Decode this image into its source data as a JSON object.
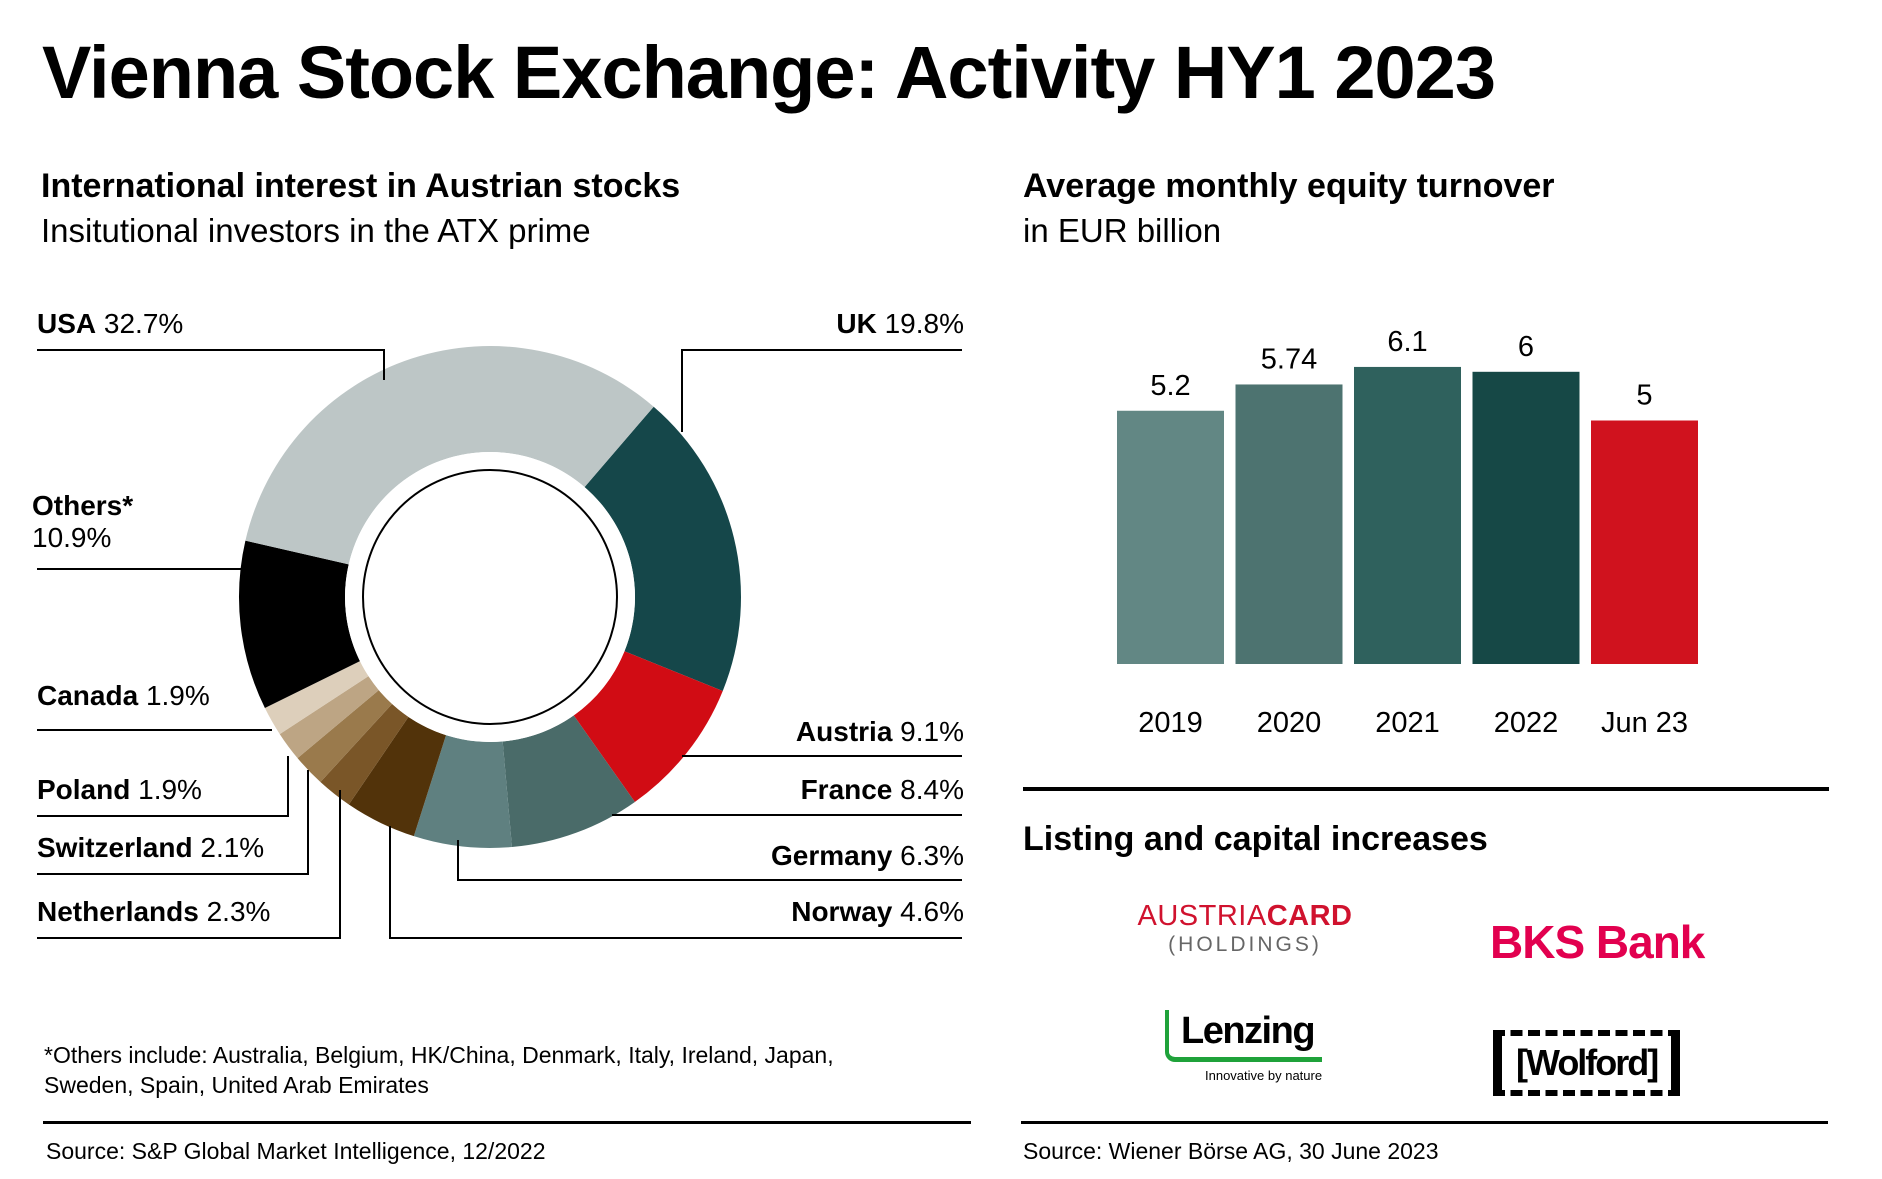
{
  "title": "Vienna Stock Exchange: Activity HY1 2023",
  "left": {
    "heading": "International interest in Austrian stocks",
    "subheading": "Insitutional investors in the ATX prime",
    "footnote_line1": "*Others include: Australia, Belgium, HK/China, Denmark, Italy, Ireland, Japan,",
    "footnote_line2": "Sweden, Spain, United Arab Emirates",
    "source": "Source: S&P Global Market Intelligence, 12/2022"
  },
  "right": {
    "heading": "Average monthly equity turnover",
    "subheading": "in EUR billion",
    "listing_heading": "Listing and capital increases",
    "source": "Source: Wiener Börse AG, 30 June 2023",
    "logos": {
      "austriacard_a": "AUSTRIA",
      "austriacard_b": "CARD",
      "austriacard_holdings": "(HOLDINGS)",
      "bks": "BKS Bank",
      "lenzing": "Lenzing",
      "lenzing_tagline": "Innovative by nature",
      "wolford": "[Wolford]"
    }
  },
  "chart_data": [
    {
      "type": "pie",
      "title": "International interest in Austrian stocks",
      "unit": "%",
      "slices": [
        {
          "name": "UK",
          "value": 19.8,
          "label": "19.8%",
          "color": "#15474a"
        },
        {
          "name": "Austria",
          "value": 9.1,
          "label": "9.1%",
          "color": "#d10c14"
        },
        {
          "name": "France",
          "value": 8.4,
          "label": "8.4%",
          "color": "#4a6b69"
        },
        {
          "name": "Germany",
          "value": 6.3,
          "label": "6.3%",
          "color": "#5f8080"
        },
        {
          "name": "Norway",
          "value": 4.6,
          "label": "4.6%",
          "color": "#52330a"
        },
        {
          "name": "Netherlands",
          "value": 2.3,
          "label": "2.3%",
          "color": "#7a5628"
        },
        {
          "name": "Switzerland",
          "value": 2.1,
          "label": "2.1%",
          "color": "#9a7a4c"
        },
        {
          "name": "Poland",
          "value": 1.9,
          "label": "1.9%",
          "color": "#bda584"
        },
        {
          "name": "Canada",
          "value": 1.9,
          "label": "1.9%",
          "color": "#ddcfbb"
        },
        {
          "name": "Others*",
          "value": 10.9,
          "label": "10.9%",
          "color": "#000000"
        },
        {
          "name": "USA",
          "value": 32.7,
          "label": "32.7%",
          "color": "#bdc6c6"
        }
      ]
    },
    {
      "type": "bar",
      "title": "Average monthly equity turnover",
      "ylabel": "EUR billion",
      "categories": [
        "2019",
        "2020",
        "2021",
        "2022",
        "Jun 23"
      ],
      "values": [
        5.2,
        5.74,
        6.1,
        6,
        5
      ],
      "value_labels": [
        "5.2",
        "5.74",
        "6.1",
        "6",
        "5"
      ],
      "colors": [
        "#628784",
        "#4d7370",
        "#2f615d",
        "#164846",
        "#d0121e"
      ],
      "ylim": [
        0,
        6.1
      ]
    }
  ]
}
